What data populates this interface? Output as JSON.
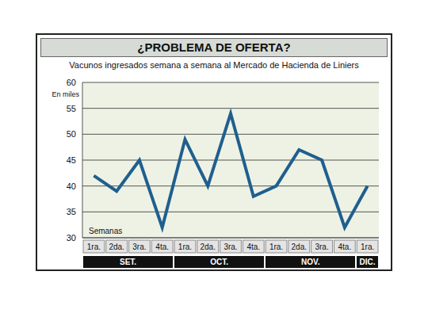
{
  "chart_data": {
    "type": "line",
    "title": "¿PROBLEMA DE OFERTA?",
    "subtitle": "Vacunos ingresados semana a semana al Mercado de Hacienda de Liniers",
    "y_label": "En miles",
    "x_label": "Semanas",
    "categories": [
      "1ra.",
      "2da.",
      "3ra.",
      "4ta.",
      "1ra.",
      "2da.",
      "3ra.",
      "4ta.",
      "1ra.",
      "2da.",
      "3ra.",
      "4ta.",
      "1ra."
    ],
    "groups": [
      {
        "label": "SET.",
        "span": 4
      },
      {
        "label": "OCT.",
        "span": 4
      },
      {
        "label": "NOV.",
        "span": 4
      },
      {
        "label": "DIC.",
        "span": 1
      }
    ],
    "values": [
      42,
      39,
      45,
      32,
      49,
      40,
      54,
      38,
      40,
      47,
      45,
      32,
      40
    ],
    "color": "#1f5f8f",
    "ylim": [
      30,
      60
    ],
    "yticks": [
      30,
      35,
      40,
      45,
      50,
      55,
      60
    ],
    "grid": true
  }
}
